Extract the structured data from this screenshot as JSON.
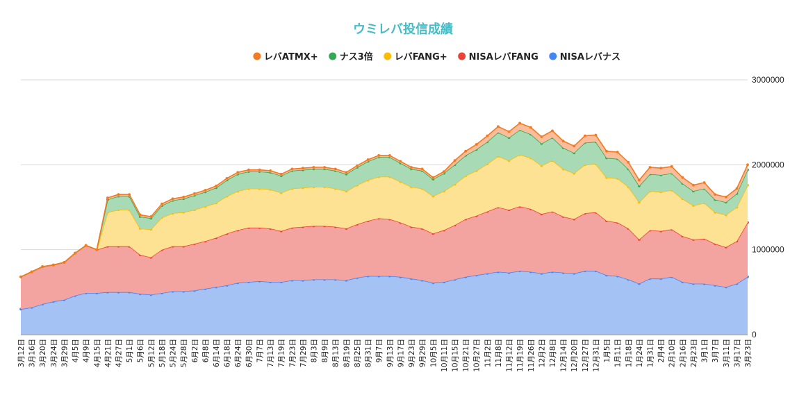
{
  "chart_data": {
    "type": "area",
    "stacked": true,
    "title": "ウミレバ投信成績",
    "title_color": "#46bdc6",
    "xlabel": "",
    "ylabel": "",
    "ylim": [
      0,
      3000000
    ],
    "yticks": [
      0,
      1000000,
      2000000,
      3000000
    ],
    "ytick_labels": [
      "0",
      "1000000",
      "2000000",
      "3000000"
    ],
    "grid": true,
    "legend_position": "top",
    "x": [
      "3月12日",
      "3月16日",
      "3月20日",
      "3月24日",
      "3月29日",
      "4月5日",
      "4月9日",
      "4月15日",
      "4月21日",
      "4月27日",
      "5月1日",
      "5月6日",
      "5月12日",
      "5月18日",
      "5月24日",
      "5月28日",
      "6月2日",
      "6月8日",
      "6月14日",
      "6月18日",
      "6月24日",
      "6月30日",
      "7月7日",
      "7月13日",
      "7月19日",
      "7月23日",
      "7月29日",
      "8月3日",
      "8月9日",
      "8月13日",
      "8月19日",
      "8月25日",
      "8月31日",
      "9月7日",
      "9月13日",
      "9月17日",
      "9月23日",
      "9月29日",
      "10月5日",
      "10月11日",
      "10月15日",
      "10月21日",
      "10月27日",
      "11月2日",
      "11月8日",
      "11月12日",
      "11月19日",
      "11月26日",
      "12月2日",
      "12月8日",
      "12月14日",
      "12月20日",
      "12月27日",
      "12月31日",
      "1月5日",
      "1月11日",
      "1月18日",
      "1月24日",
      "1月31日",
      "2月4日",
      "2月10日",
      "2月16日",
      "2月23日",
      "3月1日",
      "3月7日",
      "3月11日",
      "3月17日",
      "3月23日"
    ],
    "series": [
      {
        "name": "NISAレバナス",
        "fill": "#a4c2f4",
        "line": "#4285f4",
        "values": [
          300000,
          320000,
          360000,
          390000,
          410000,
          460000,
          490000,
          490000,
          500000,
          500000,
          500000,
          480000,
          470000,
          490000,
          510000,
          510000,
          520000,
          540000,
          560000,
          580000,
          610000,
          620000,
          630000,
          620000,
          620000,
          640000,
          640000,
          650000,
          650000,
          650000,
          640000,
          670000,
          690000,
          690000,
          690000,
          680000,
          660000,
          640000,
          610000,
          620000,
          650000,
          680000,
          700000,
          720000,
          740000,
          730000,
          750000,
          740000,
          720000,
          740000,
          730000,
          720000,
          750000,
          750000,
          700000,
          690000,
          650000,
          600000,
          660000,
          660000,
          680000,
          620000,
          600000,
          600000,
          580000,
          560000,
          600000,
          680000
        ]
      },
      {
        "name": "NISAレバFANG",
        "fill": "#f4a4a0",
        "line": "#ea4335",
        "values": [
          380000,
          420000,
          440000,
          430000,
          440000,
          500000,
          560000,
          510000,
          540000,
          540000,
          540000,
          460000,
          440000,
          510000,
          530000,
          530000,
          550000,
          560000,
          580000,
          610000,
          620000,
          640000,
          630000,
          630000,
          600000,
          620000,
          630000,
          630000,
          630000,
          620000,
          610000,
          630000,
          650000,
          680000,
          670000,
          640000,
          610000,
          610000,
          580000,
          610000,
          640000,
          680000,
          700000,
          730000,
          760000,
          740000,
          760000,
          740000,
          700000,
          710000,
          660000,
          640000,
          680000,
          690000,
          640000,
          630000,
          600000,
          520000,
          570000,
          560000,
          560000,
          540000,
          520000,
          530000,
          490000,
          470000,
          500000,
          640000
        ]
      },
      {
        "name": "レバFANG+",
        "fill": "#fde293",
        "line": "#fbbc04",
        "values": [
          0,
          0,
          0,
          0,
          0,
          0,
          0,
          0,
          400000,
          430000,
          430000,
          310000,
          330000,
          380000,
          390000,
          400000,
          400000,
          410000,
          410000,
          440000,
          460000,
          460000,
          460000,
          460000,
          450000,
          460000,
          460000,
          460000,
          460000,
          450000,
          440000,
          460000,
          480000,
          490000,
          500000,
          480000,
          470000,
          470000,
          440000,
          460000,
          480000,
          510000,
          530000,
          560000,
          600000,
          580000,
          610000,
          600000,
          570000,
          600000,
          560000,
          540000,
          570000,
          570000,
          510000,
          520000,
          490000,
          440000,
          460000,
          460000,
          460000,
          440000,
          400000,
          420000,
          370000,
          380000,
          400000,
          440000
        ]
      },
      {
        "name": "ナス3倍",
        "fill": "#a8dab5",
        "line": "#34a853",
        "values": [
          0,
          0,
          0,
          0,
          0,
          0,
          0,
          0,
          150000,
          160000,
          160000,
          140000,
          130000,
          140000,
          150000,
          160000,
          170000,
          170000,
          180000,
          190000,
          200000,
          200000,
          200000,
          200000,
          200000,
          210000,
          210000,
          210000,
          210000,
          210000,
          200000,
          210000,
          220000,
          230000,
          230000,
          220000,
          210000,
          210000,
          200000,
          210000,
          230000,
          240000,
          250000,
          260000,
          280000,
          270000,
          290000,
          280000,
          260000,
          270000,
          250000,
          240000,
          260000,
          260000,
          230000,
          230000,
          210000,
          190000,
          200000,
          200000,
          200000,
          180000,
          170000,
          170000,
          150000,
          150000,
          160000,
          180000
        ]
      },
      {
        "name": "レバATMX+",
        "fill": "#fbbc9b",
        "line": "#f4791f",
        "values": [
          0,
          0,
          0,
          0,
          0,
          0,
          0,
          0,
          20000,
          20000,
          20000,
          20000,
          20000,
          20000,
          20000,
          20000,
          20000,
          20000,
          20000,
          20000,
          20000,
          20000,
          20000,
          20000,
          20000,
          20000,
          20000,
          20000,
          20000,
          20000,
          20000,
          20000,
          20000,
          20000,
          20000,
          20000,
          20000,
          20000,
          20000,
          20000,
          50000,
          50000,
          60000,
          70000,
          70000,
          70000,
          80000,
          80000,
          80000,
          80000,
          80000,
          80000,
          80000,
          80000,
          80000,
          80000,
          80000,
          70000,
          80000,
          80000,
          80000,
          70000,
          70000,
          70000,
          60000,
          60000,
          60000,
          60000
        ]
      }
    ]
  }
}
